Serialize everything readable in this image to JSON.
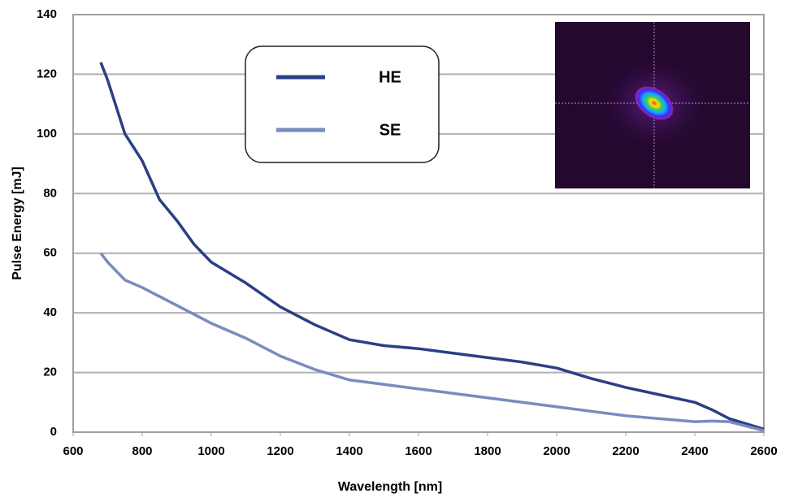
{
  "chart_data": {
    "type": "line",
    "x_label": "Wavelength [nm]",
    "y_label": "Pulse Energy [mJ]",
    "x": [
      680,
      700,
      750,
      800,
      850,
      900,
      950,
      1000,
      1100,
      1200,
      1300,
      1400,
      1500,
      1600,
      1700,
      1800,
      1900,
      2000,
      2100,
      2200,
      2300,
      2400,
      2450,
      2500,
      2600
    ],
    "series": [
      {
        "name": "HE",
        "color": "#2b3f85",
        "values": [
          124,
          118,
          100,
          91,
          78,
          71,
          63,
          57,
          50,
          42,
          36,
          31,
          29,
          28,
          26.5,
          25,
          23.5,
          21.5,
          18,
          15,
          12.5,
          10,
          7.5,
          4.5,
          1
        ]
      },
      {
        "name": "SE",
        "color": "#7a8bc0",
        "values": [
          60,
          57,
          51,
          48.5,
          45.5,
          42.5,
          39.5,
          36.5,
          31.5,
          25.5,
          21,
          17.5,
          16,
          14.5,
          13,
          11.5,
          10,
          8.5,
          7,
          5.5,
          4.5,
          3.5,
          3.7,
          3.5,
          0.5
        ]
      }
    ],
    "xlim": [
      600,
      2600
    ],
    "xticks": [
      600,
      800,
      1000,
      1200,
      1400,
      1600,
      1800,
      2000,
      2200,
      2400,
      2600
    ],
    "ylim": [
      0,
      140
    ],
    "yticks": [
      0,
      20,
      40,
      60,
      80,
      100,
      120,
      140
    ],
    "grid": true
  }
}
